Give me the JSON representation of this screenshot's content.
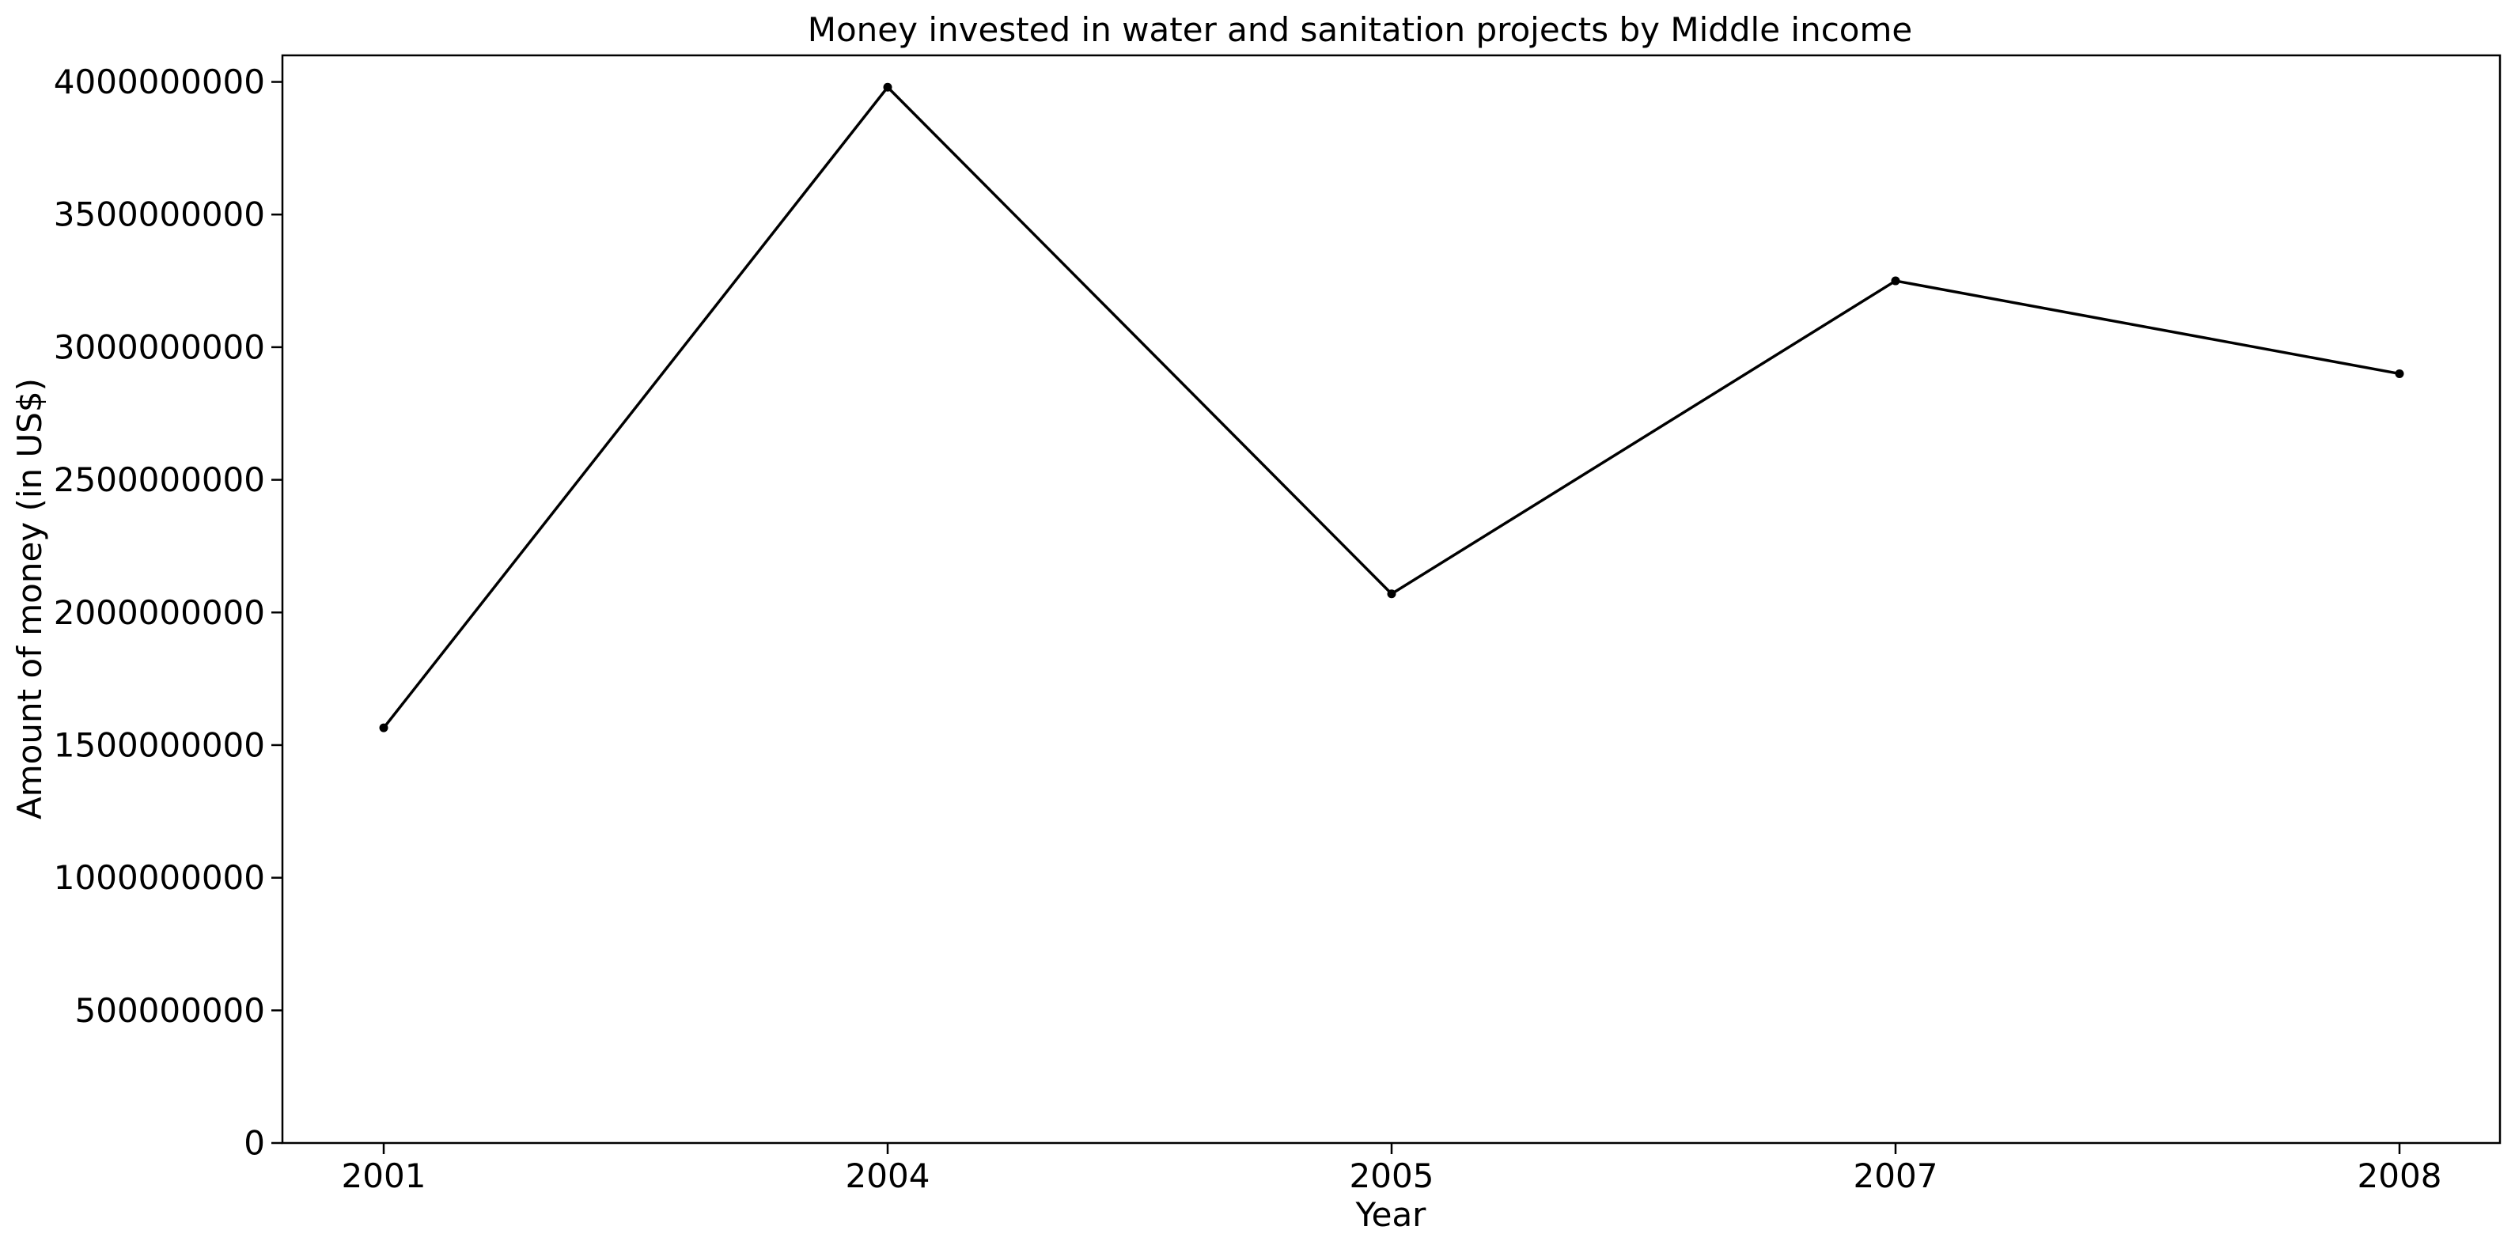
{
  "chart_data": {
    "type": "line",
    "title": "Money invested in water and sanitation projects by Middle income",
    "xlabel": "Year",
    "ylabel": "Amount of money (in US$)",
    "categories": [
      "2001",
      "2004",
      "2005",
      "2007",
      "2008"
    ],
    "series": [
      {
        "values": [
          1565000000,
          3980000000,
          2070000000,
          3250000000,
          2900000000
        ],
        "color": "#000000"
      }
    ],
    "ylim": [
      0,
      4100000000
    ],
    "yticks": [
      0,
      500000000,
      1000000000,
      1500000000,
      2000000000,
      2500000000,
      3000000000,
      3500000000,
      4000000000
    ],
    "ytick_labels": [
      "0",
      "500000000",
      "1000000000",
      "1500000000",
      "2000000000",
      "2500000000",
      "3000000000",
      "3500000000",
      "4000000000"
    ],
    "grid": false,
    "legend": false
  }
}
